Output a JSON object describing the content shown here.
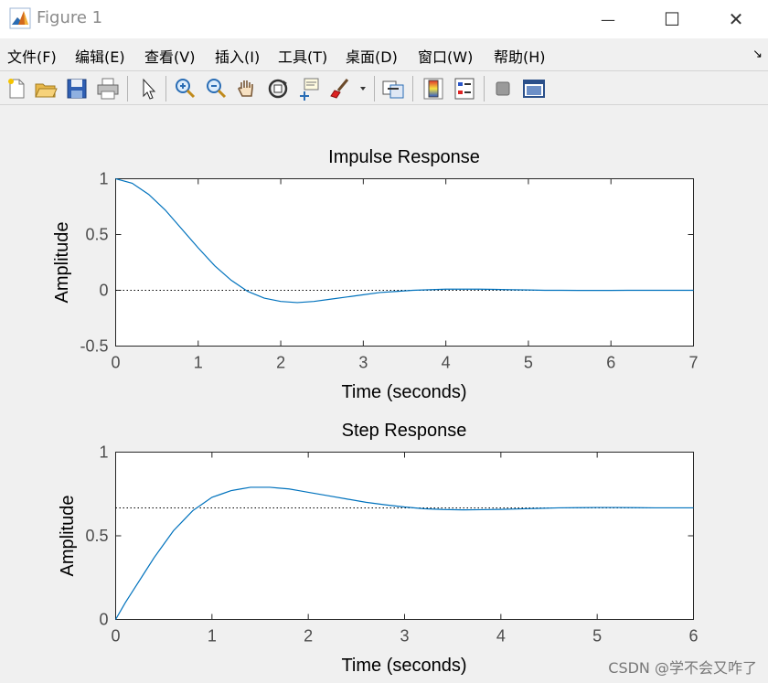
{
  "window": {
    "title": "Figure 1",
    "minimize_glyph": "—",
    "maximize_glyph": "☐",
    "close_glyph": "✕"
  },
  "menu": {
    "items": [
      "文件(F)",
      "编辑(E)",
      "查看(V)",
      "插入(I)",
      "工具(T)",
      "桌面(D)",
      "窗口(W)",
      "帮助(H)"
    ],
    "dock_glyph": "↘"
  },
  "toolbar": {
    "icons": [
      "new-figure-icon",
      "open-file-icon",
      "save-icon",
      "print-icon",
      "pointer-icon",
      "zoom-in-icon",
      "zoom-out-icon",
      "pan-hand-icon",
      "rotate-3d-icon",
      "data-cursor-icon",
      "brush-icon",
      "brush-dropdown-icon",
      "link-plot-icon",
      "colorbar-icon",
      "legend-icon",
      "hide-plot-tools-icon",
      "show-plot-tools-icon"
    ]
  },
  "colors": {
    "line": "#0072bd",
    "axes": "#262626",
    "tick_text": "#4d4d4d",
    "background": "#f0f0f0"
  },
  "watermark": "CSDN @学不会又咋了",
  "chart_data": [
    {
      "type": "line",
      "title": "Impulse Response",
      "xlabel": "Time (seconds)",
      "ylabel": "Amplitude",
      "xlim": [
        0,
        7
      ],
      "ylim": [
        -0.5,
        1
      ],
      "xticks": [
        0,
        1,
        2,
        3,
        4,
        5,
        6,
        7
      ],
      "yticks": [
        -0.5,
        0,
        0.5,
        1
      ],
      "ytick_labels": [
        "-0.5",
        "0",
        "0.5",
        "1"
      ],
      "reference_line": 0,
      "grid": false,
      "series": [
        {
          "x": [
            0,
            0.2,
            0.4,
            0.6,
            0.8,
            1.0,
            1.2,
            1.4,
            1.6,
            1.8,
            2.0,
            2.2,
            2.4,
            2.6,
            2.8,
            3.0,
            3.2,
            3.4,
            3.6,
            3.8,
            4.0,
            4.2,
            4.4,
            4.6,
            4.8,
            5.0,
            5.2,
            5.4,
            5.6,
            5.8,
            6.0,
            6.2,
            6.4,
            6.6,
            6.8,
            7.0
          ],
          "y": [
            1.0,
            0.96,
            0.86,
            0.72,
            0.55,
            0.38,
            0.22,
            0.09,
            -0.01,
            -0.07,
            -0.1,
            -0.11,
            -0.1,
            -0.08,
            -0.06,
            -0.04,
            -0.02,
            -0.01,
            0.0,
            0.005,
            0.01,
            0.01,
            0.01,
            0.008,
            0.005,
            0.003,
            0.0,
            0.0,
            -0.001,
            -0.001,
            -0.001,
            0.0,
            0.0,
            0.0,
            0.0,
            0.0
          ]
        }
      ]
    },
    {
      "type": "line",
      "title": "Step Response",
      "xlabel": "Time (seconds)",
      "ylabel": "Amplitude",
      "xlim": [
        0,
        6
      ],
      "ylim": [
        0,
        1
      ],
      "xticks": [
        0,
        1,
        2,
        3,
        4,
        5,
        6
      ],
      "yticks": [
        0,
        0.5,
        1
      ],
      "ytick_labels": [
        "0",
        "0.5",
        "1"
      ],
      "reference_line": 0.667,
      "grid": false,
      "series": [
        {
          "x": [
            0,
            0.1,
            0.2,
            0.3,
            0.4,
            0.5,
            0.6,
            0.7,
            0.8,
            0.9,
            1.0,
            1.1,
            1.2,
            1.3,
            1.4,
            1.5,
            1.6,
            1.7,
            1.8,
            1.9,
            2.0,
            2.2,
            2.4,
            2.6,
            2.8,
            3.0,
            3.2,
            3.4,
            3.6,
            3.8,
            4.0,
            4.2,
            4.4,
            4.6,
            4.8,
            5.0,
            5.2,
            5.4,
            5.6,
            5.8,
            6.0
          ],
          "y": [
            0,
            0.1,
            0.19,
            0.28,
            0.37,
            0.45,
            0.53,
            0.59,
            0.65,
            0.69,
            0.73,
            0.75,
            0.77,
            0.78,
            0.79,
            0.79,
            0.79,
            0.785,
            0.78,
            0.77,
            0.76,
            0.74,
            0.72,
            0.7,
            0.685,
            0.672,
            0.662,
            0.657,
            0.655,
            0.656,
            0.658,
            0.661,
            0.664,
            0.667,
            0.668,
            0.669,
            0.669,
            0.668,
            0.667,
            0.667,
            0.667
          ]
        }
      ]
    }
  ]
}
